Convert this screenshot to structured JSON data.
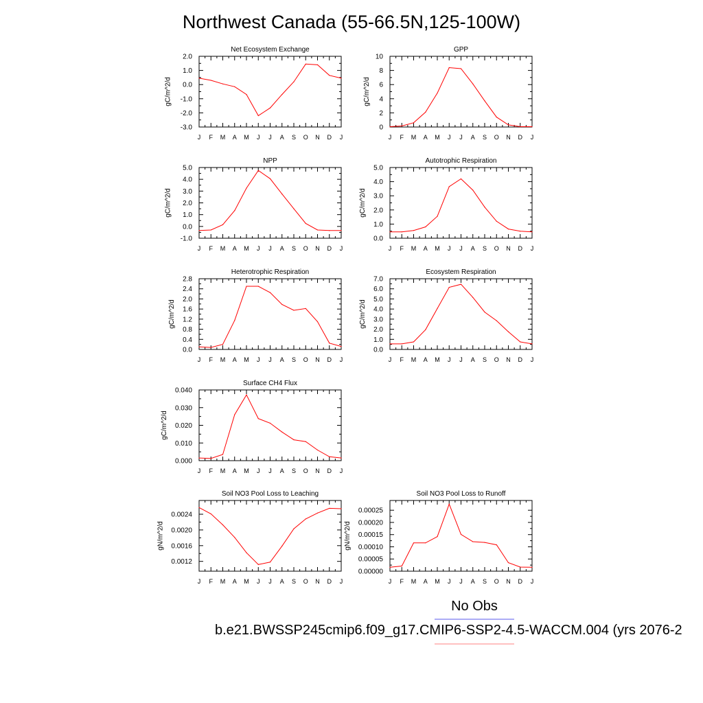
{
  "title": "Northwest Canada (55-66.5N,125-100W)",
  "legend": {
    "label": "No Obs",
    "case": "b.e21.BWSSP245cmip6.f09_g17.CMIP6-SSP2-4.5-WACCM.004 (yrs 2076-2",
    "colors": {
      "obs": "#7b7bf0",
      "model": "#ff9a9a"
    }
  },
  "series_color": "#ff0000",
  "chart_data": [
    {
      "type": "line",
      "title": "Net Ecosystem Exchange",
      "ylabel": "gC/m^2/d",
      "x": [
        "J",
        "F",
        "M",
        "A",
        "M",
        "J",
        "J",
        "A",
        "S",
        "O",
        "N",
        "D",
        "J"
      ],
      "ylim": [
        -3.0,
        2.0
      ],
      "yticks": [
        -3.0,
        -2.0,
        -1.0,
        0.0,
        1.0,
        2.0
      ],
      "yticklabels": [
        "-3.0",
        "-2.0",
        "-1.0",
        "0.0",
        "1.0",
        "2.0"
      ],
      "values": [
        0.45,
        0.3,
        0.05,
        -0.15,
        -0.7,
        -2.2,
        -1.65,
        -0.7,
        0.2,
        1.45,
        1.4,
        0.65,
        0.45
      ]
    },
    {
      "type": "line",
      "title": "GPP",
      "ylabel": "gC/m^2/d",
      "x": [
        "J",
        "F",
        "M",
        "A",
        "M",
        "J",
        "J",
        "A",
        "S",
        "O",
        "N",
        "D",
        "J"
      ],
      "ylim": [
        0,
        10
      ],
      "yticks": [
        0,
        2,
        4,
        6,
        8,
        10
      ],
      "yticklabels": [
        "0",
        "2",
        "4",
        "6",
        "8",
        "10"
      ],
      "values": [
        0.05,
        0.15,
        0.6,
        2.1,
        4.8,
        8.4,
        8.25,
        6.1,
        3.7,
        1.4,
        0.3,
        0.05,
        0.05
      ]
    },
    {
      "type": "line",
      "title": "NPP",
      "ylabel": "gC/m^2/d",
      "x": [
        "J",
        "F",
        "M",
        "A",
        "M",
        "J",
        "J",
        "A",
        "S",
        "O",
        "N",
        "D",
        "J"
      ],
      "ylim": [
        -1.0,
        5.0
      ],
      "yticks": [
        -1.0,
        0.0,
        1.0,
        2.0,
        3.0,
        4.0,
        5.0
      ],
      "yticklabels": [
        "-1.0",
        "0.0",
        "1.0",
        "2.0",
        "3.0",
        "4.0",
        "5.0"
      ],
      "values": [
        -0.35,
        -0.3,
        0.15,
        1.35,
        3.25,
        4.75,
        4.05,
        2.75,
        1.5,
        0.25,
        -0.3,
        -0.35,
        -0.35
      ]
    },
    {
      "type": "line",
      "title": "Autotrophic Respiration",
      "ylabel": "gC/m^2/d",
      "x": [
        "J",
        "F",
        "M",
        "A",
        "M",
        "J",
        "J",
        "A",
        "S",
        "O",
        "N",
        "D",
        "J"
      ],
      "ylim": [
        0.0,
        5.0
      ],
      "yticks": [
        0.0,
        1.0,
        2.0,
        3.0,
        4.0,
        5.0
      ],
      "yticklabels": [
        "0.0",
        "1.0",
        "2.0",
        "3.0",
        "4.0",
        "5.0"
      ],
      "values": [
        0.45,
        0.45,
        0.55,
        0.8,
        1.55,
        3.65,
        4.2,
        3.4,
        2.2,
        1.2,
        0.65,
        0.5,
        0.45
      ]
    },
    {
      "type": "line",
      "title": "Heterotrophic Respiration",
      "ylabel": "gC/m^2/d",
      "x": [
        "J",
        "F",
        "M",
        "A",
        "M",
        "J",
        "J",
        "A",
        "S",
        "O",
        "N",
        "D",
        "J"
      ],
      "ylim": [
        0.0,
        2.8
      ],
      "yticks": [
        0.0,
        0.4,
        0.8,
        1.2,
        1.6,
        2.0,
        2.4,
        2.8
      ],
      "yticklabels": [
        "0.0",
        "0.4",
        "0.8",
        "1.2",
        "1.6",
        "2.0",
        "2.4",
        "2.8"
      ],
      "values": [
        0.1,
        0.08,
        0.2,
        1.15,
        2.5,
        2.5,
        2.25,
        1.78,
        1.55,
        1.62,
        1.1,
        0.25,
        0.12
      ]
    },
    {
      "type": "line",
      "title": "Ecosystem Respiration",
      "ylabel": "gC/m^2/d",
      "x": [
        "J",
        "F",
        "M",
        "A",
        "M",
        "J",
        "J",
        "A",
        "S",
        "O",
        "N",
        "D",
        "J"
      ],
      "ylim": [
        0.0,
        7.0
      ],
      "yticks": [
        0.0,
        1.0,
        2.0,
        3.0,
        4.0,
        5.0,
        6.0,
        7.0
      ],
      "yticklabels": [
        "0.0",
        "1.0",
        "2.0",
        "3.0",
        "4.0",
        "5.0",
        "6.0",
        "7.0"
      ],
      "values": [
        0.55,
        0.55,
        0.75,
        1.95,
        4.05,
        6.15,
        6.45,
        5.15,
        3.7,
        2.85,
        1.75,
        0.75,
        0.55
      ]
    },
    {
      "type": "line",
      "title": "Surface CH4 Flux",
      "ylabel": "gC/m^2/d",
      "x": [
        "J",
        "F",
        "M",
        "A",
        "M",
        "J",
        "J",
        "A",
        "S",
        "O",
        "N",
        "D",
        "J"
      ],
      "ylim": [
        0.0,
        0.04
      ],
      "yticks": [
        0.0,
        0.01,
        0.02,
        0.03,
        0.04
      ],
      "yticklabels": [
        "0.000",
        "0.010",
        "0.020",
        "0.030",
        "0.040"
      ],
      "values": [
        0.0015,
        0.0013,
        0.0035,
        0.026,
        0.0372,
        0.0238,
        0.0212,
        0.0162,
        0.0118,
        0.0108,
        0.006,
        0.0022,
        0.0015
      ]
    },
    {
      "type": "line",
      "title": "Soil NO3 Pool Loss to Leaching",
      "ylabel": "gN/m^2/d",
      "x": [
        "J",
        "F",
        "M",
        "A",
        "M",
        "J",
        "J",
        "A",
        "S",
        "O",
        "N",
        "D",
        "J"
      ],
      "ylim": [
        0.00095,
        0.00275
      ],
      "yticks": [
        0.0012,
        0.0016,
        0.002,
        0.0024
      ],
      "yticklabels": [
        "0.0012",
        "0.0016",
        "0.0020",
        "0.0024"
      ],
      "values": [
        0.00257,
        0.00241,
        0.00213,
        0.00181,
        0.00142,
        0.00112,
        0.00118,
        0.00159,
        0.00203,
        0.00228,
        0.00243,
        0.00255,
        0.00254
      ]
    },
    {
      "type": "line",
      "title": "Soil NO3 Pool Loss to Runoff",
      "ylabel": "gN/m^2/d",
      "x": [
        "J",
        "F",
        "M",
        "A",
        "M",
        "J",
        "J",
        "A",
        "S",
        "O",
        "N",
        "D",
        "J"
      ],
      "ylim": [
        0.0,
        0.00029
      ],
      "yticks": [
        0.0,
        5e-05,
        0.0001,
        0.00015,
        0.0002,
        0.00025
      ],
      "yticklabels": [
        "0.00000",
        "0.00005",
        "0.00010",
        "0.00015",
        "0.00020",
        "0.00025"
      ],
      "values": [
        1.6e-05,
        2.1e-05,
        0.000116,
        0.000116,
        0.000142,
        0.000275,
        0.000151,
        0.000121,
        0.000118,
        0.000108,
        3.5e-05,
        1.7e-05,
        1.6e-05
      ]
    }
  ]
}
